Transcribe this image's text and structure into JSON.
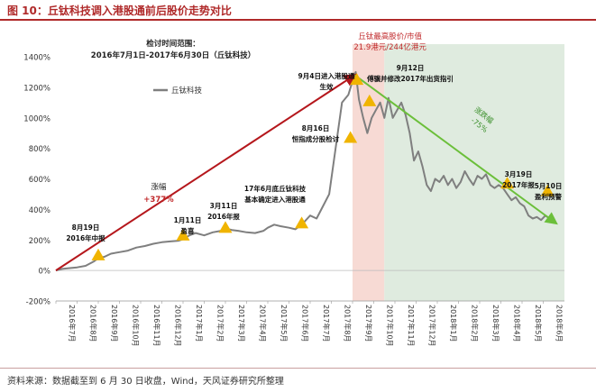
{
  "figure_title": "图 10：丘钛科技调入港股通前后股价走势对比",
  "source_note": "资料来源：数据截至到 6 月 30 日收盘，Wind，天风证券研究所整理",
  "colors": {
    "title": "#b02a2a",
    "series": "#7f7f7f",
    "trend_up": "#b5171c",
    "trend_down": "#6bbf3a",
    "triangle": "#f0b400",
    "band_red": "#f6d6cf",
    "band_green": "#dbe9dc",
    "annotation_red": "#c0292b",
    "annotation_green": "#3a8f2a"
  },
  "chart_data": {
    "type": "line",
    "title": "",
    "xlabel": "",
    "ylabel": "",
    "ylim": [
      -200,
      1400
    ],
    "yticks": [
      "-200%",
      "0%",
      "200%",
      "400%",
      "600%",
      "800%",
      "1000%",
      "1200%",
      "1400%"
    ],
    "ytick_values": [
      -200,
      0,
      200,
      400,
      600,
      800,
      1000,
      1200,
      1400
    ],
    "xlim": [
      0,
      24
    ],
    "xticks": [
      "2016年7月",
      "2016年8月",
      "2016年9月",
      "2016年10月",
      "2016年11月",
      "2016年12月",
      "2017年1月",
      "2017年2月",
      "2017年3月",
      "2017年4月",
      "2017年5月",
      "2017年6月",
      "2017年7月",
      "2017年8月",
      "2017年9月",
      "2017年10月",
      "2017年11月",
      "2017年12月",
      "2018年1月",
      "2018年2月",
      "2018年3月",
      "2018年4月",
      "2018年5月",
      "2018年6月"
    ],
    "grid": false,
    "legend": {
      "position": "top-left",
      "label": "丘钛科技"
    },
    "series": [
      {
        "name": "丘钛科技",
        "x": [
          0,
          0.3,
          0.6,
          1.0,
          1.4,
          1.8,
          2.0,
          2.3,
          2.6,
          3.0,
          3.4,
          3.8,
          4.2,
          4.6,
          5.0,
          5.4,
          5.8,
          6.0,
          6.3,
          6.6,
          7.0,
          7.4,
          7.8,
          8.0,
          8.3,
          8.6,
          9.0,
          9.4,
          9.8,
          10.0,
          10.3,
          10.6,
          11.0,
          11.3,
          11.6,
          12.0,
          12.3,
          12.6,
          12.9,
          13.2,
          13.5,
          13.8,
          14.0,
          14.15,
          14.3,
          14.5,
          14.7,
          14.9,
          15.1,
          15.3,
          15.5,
          15.7,
          15.9,
          16.1,
          16.3,
          16.5,
          16.7,
          16.9,
          17.1,
          17.3,
          17.5,
          17.7,
          17.9,
          18.1,
          18.3,
          18.5,
          18.7,
          18.9,
          19.1,
          19.3,
          19.5,
          19.7,
          19.9,
          20.1,
          20.3,
          20.5,
          20.7,
          20.9,
          21.1,
          21.3,
          21.5,
          21.7,
          21.9,
          22.1,
          22.3,
          22.5,
          22.7,
          22.9,
          23.1,
          23.3,
          23.5
        ],
        "values": [
          0,
          10,
          15,
          20,
          30,
          60,
          80,
          90,
          110,
          120,
          130,
          150,
          160,
          175,
          185,
          190,
          195,
          205,
          230,
          245,
          230,
          250,
          260,
          275,
          265,
          260,
          250,
          245,
          260,
          280,
          300,
          290,
          280,
          270,
          300,
          360,
          340,
          420,
          500,
          800,
          1100,
          1150,
          1240,
          1300,
          1120,
          1000,
          900,
          1000,
          1050,
          1100,
          1000,
          1130,
          1000,
          1050,
          1100,
          1020,
          900,
          720,
          780,
          680,
          560,
          520,
          600,
          580,
          620,
          560,
          600,
          540,
          580,
          650,
          600,
          560,
          620,
          600,
          630,
          560,
          540,
          560,
          540,
          500,
          460,
          480,
          440,
          420,
          360,
          340,
          350,
          330,
          360,
          340,
          310
        ]
      }
    ],
    "bands": [
      {
        "x_start": 14.0,
        "x_end": 15.5,
        "color": "band_red",
        "label": "丘钛最高股价/市值",
        "sublabel": "21.9港元/244亿港元"
      },
      {
        "x_start": 15.5,
        "x_end": 24.0,
        "color": "band_green",
        "label": "",
        "sublabel": ""
      }
    ],
    "trend_lines": [
      {
        "x": [
          0,
          14.1
        ],
        "y": [
          0,
          1280
        ],
        "color": "trend_up",
        "label": "涨幅",
        "value_label": "+377%"
      },
      {
        "x": [
          14.1,
          23.6
        ],
        "y": [
          1280,
          310
        ],
        "color": "trend_down",
        "label": "涨跌幅",
        "value_label": "-75%"
      }
    ],
    "range_note": {
      "label": "检讨时间范围：",
      "value": "2016年7月1日-2017年6月30日（丘钛科技）"
    },
    "annotations": [
      {
        "x": 2.0,
        "y": 90,
        "lines": [
          "8月19日",
          "2016年中报"
        ]
      },
      {
        "x": 6.0,
        "y": 220,
        "lines": [
          "1月11日",
          "盈喜"
        ]
      },
      {
        "x": 8.0,
        "y": 270,
        "lines": [
          "3月11日",
          "2016年报"
        ]
      },
      {
        "x": 11.6,
        "y": 300,
        "lines": [
          "17年6月底丘钛科技",
          "基本确定进入港股通"
        ]
      },
      {
        "x": 13.9,
        "y": 860,
        "lines": [
          "8月16日",
          "恒指成分股检讨"
        ]
      },
      {
        "x": 14.2,
        "y": 1240,
        "lines": [
          "9月4日进入港股通",
          "生效"
        ]
      },
      {
        "x": 14.8,
        "y": 1100,
        "lines": [
          "9月12日",
          "傅骥并修改2017年出货指引"
        ]
      },
      {
        "x": 21.3,
        "y": 560,
        "lines": [
          "3月19日",
          "2017年报"
        ]
      },
      {
        "x": 23.2,
        "y": 510,
        "lines": [
          "5月10日",
          "盈利预警"
        ]
      }
    ]
  }
}
